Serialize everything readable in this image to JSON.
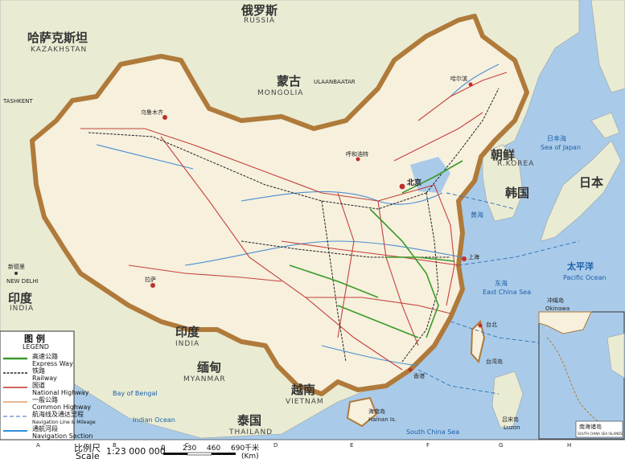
{
  "countries": {
    "russia": {
      "zh": "俄罗斯",
      "en": "RUSSIA"
    },
    "kazakhstan": {
      "zh": "哈萨克斯坦",
      "en": "KAZAKHSTAN"
    },
    "mongolia": {
      "zh": "蒙古",
      "en": "MONGOLIA"
    },
    "india": {
      "zh": "印度",
      "en": "INDIA"
    },
    "india2": {
      "zh": "印度",
      "en": "INDIA"
    },
    "myanmar": {
      "zh": "缅甸",
      "en": "MYANMAR"
    },
    "thailand": {
      "zh": "泰国",
      "en": "THAILAND"
    },
    "vietnam": {
      "zh": "越南",
      "en": "VIETNAM"
    },
    "korea": {
      "zh": "韩国",
      "en": "R.KOREA"
    },
    "dprk": {
      "zh": "朝鲜"
    },
    "japan": {
      "zh": "日本"
    }
  },
  "cities": {
    "urumqi": "乌鲁木齐",
    "beijing": "北京",
    "shanghai": "上海",
    "lhasa": "拉萨",
    "harbin": "哈尔滨",
    "hohhot": "呼和浩特",
    "taipei": "台北",
    "hong_kong": "香港",
    "new_delhi_zh": "新德里",
    "new_delhi_en": "NEW DELHI",
    "tashkent": "TASHKENT",
    "ulaanbaatar": "ULAANBAATAR"
  },
  "water": {
    "sea_of_japan_zh": "日本海",
    "sea_of_japan_en": "Sea of Japan",
    "pacific_zh": "太平洋",
    "pacific_en": "Pacific Ocean",
    "east_china_sea_zh": "东海",
    "east_china_sea_en": "East China Sea",
    "south_china_sea_en": "South China Sea",
    "bay_of_bengal_en": "Bay of Bengal",
    "indian_ocean_en": "Indian Ocean",
    "yellow_sea_zh": "黄海"
  },
  "islands": {
    "hainan_zh": "海南岛",
    "hainan_en": "Hainan Is.",
    "taiwan_zh": "台湾岛",
    "luzon_zh": "吕宋岛",
    "luzon_en": "Luzon",
    "okinawa_zh": "冲绳岛",
    "okinawa_en": "Okinawa"
  },
  "legend": {
    "title": "图 例",
    "subtitle": "LEGEND",
    "items": [
      {
        "zh": "高速公路",
        "en": "Express Way",
        "color": "#3a9a2a"
      },
      {
        "zh": "铁路",
        "en": "Railway",
        "color": "#222222"
      },
      {
        "zh": "国道",
        "en": "National Highway",
        "color": "#c0302b"
      },
      {
        "zh": "一般公路",
        "en": "Common Highway",
        "color": "#d98a4a"
      },
      {
        "zh": "航海线及通达里程",
        "en": "Navigation Line & Mileage",
        "color": "#2e6fb8"
      },
      {
        "zh": "通航河段",
        "en": "Navigation Section",
        "color": "#2e8fd8"
      }
    ]
  },
  "scale": {
    "label_zh": "比例尺",
    "label_en": "Scale",
    "ratio": "1:23 000 000",
    "ticks": [
      "0",
      "230",
      "460",
      "690千米"
    ],
    "unit": "(Km)"
  },
  "grid_labels": [
    "A",
    "B",
    "C",
    "D",
    "E",
    "F",
    "G",
    "H"
  ],
  "inset": {
    "title_zh": "南海诸岛",
    "title_en": "SOUTH CHINA SEA ISLANDS"
  },
  "colors": {
    "sea": "#a9cbe9",
    "land_foreign": "#e9ebd3",
    "land_china": "#f6f0dd",
    "border": "#b07a3a",
    "express": "#3a9a2a",
    "railway": "#222222",
    "national": "#c0302b"
  }
}
